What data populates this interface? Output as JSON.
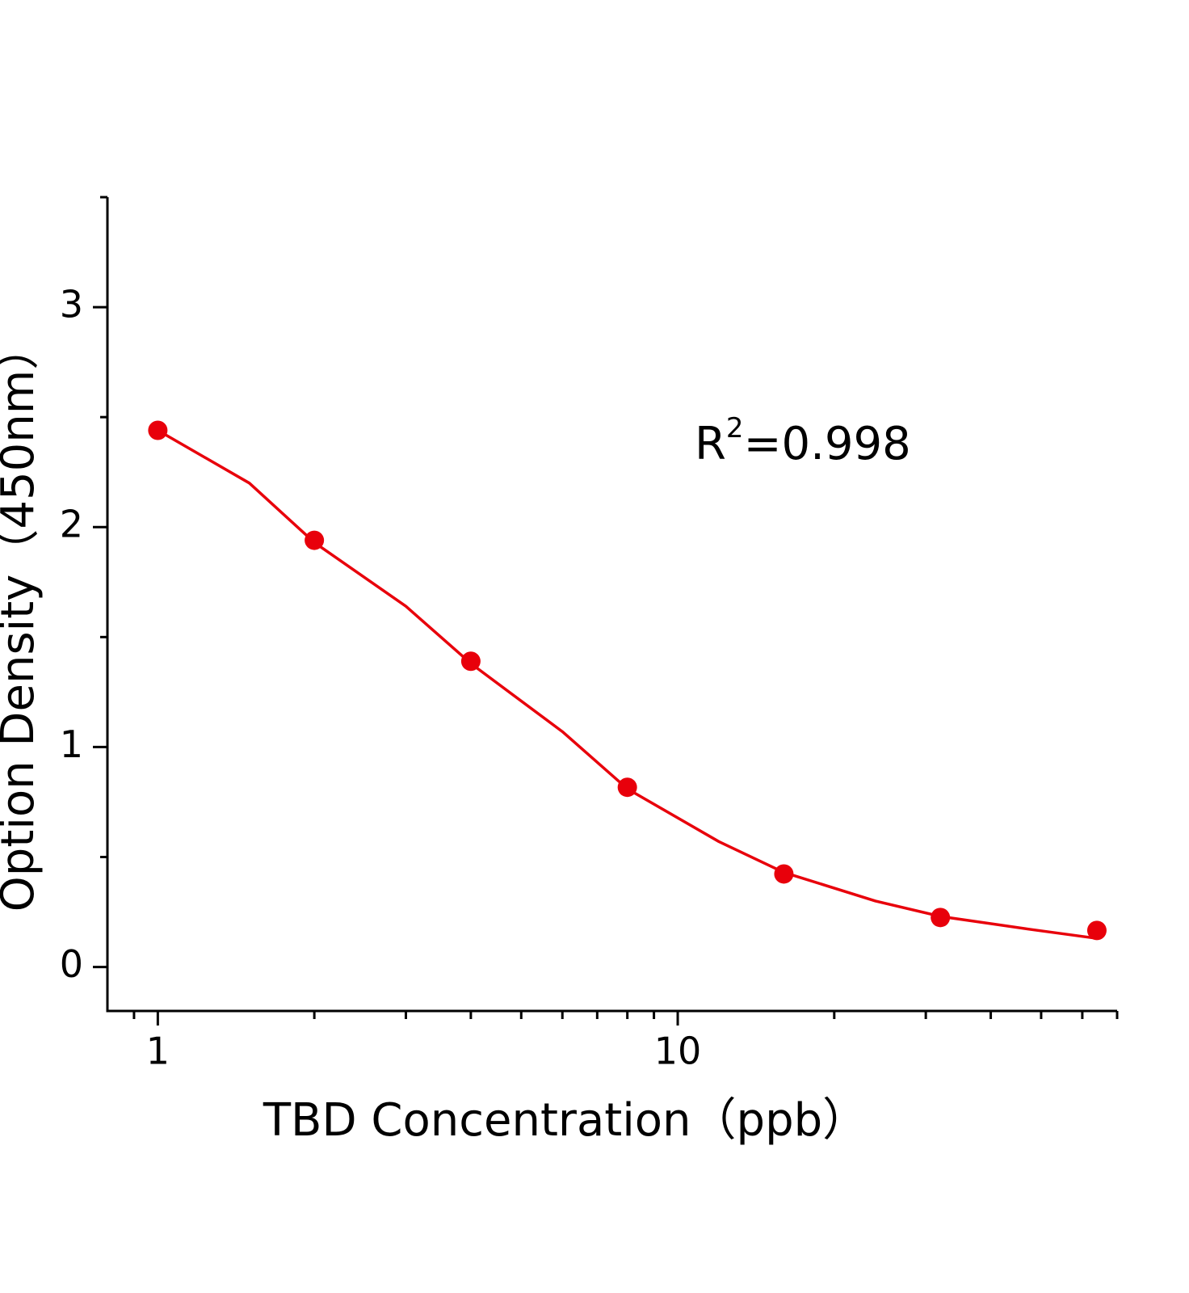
{
  "chart_data": {
    "type": "scatter",
    "xlabel": "TBD Concentration（ppb）",
    "ylabel": "Option Density（450nm）",
    "annotation": {
      "base": "R",
      "superscript": "2",
      "text": "=0.998"
    },
    "xscale": "log",
    "xlim": [
      0.8,
      70
    ],
    "ylim": [
      -0.2,
      3.5
    ],
    "xticks": [
      1,
      10
    ],
    "xminorticks": [
      0.9,
      2,
      3,
      4,
      5,
      6,
      7,
      8,
      9,
      20,
      30,
      40,
      50,
      60,
      70
    ],
    "yticks": [
      0,
      1,
      2,
      3
    ],
    "yminorticks": [
      0.5,
      1.5,
      2.5,
      3.5
    ],
    "series": [
      {
        "color": "#e8000b",
        "x": [
          1,
          2,
          4,
          8,
          16,
          32,
          64
        ],
        "values": [
          2.44,
          1.94,
          1.39,
          0.817,
          0.423,
          0.225,
          0.166
        ]
      }
    ],
    "curve": {
      "color": "#e8000b",
      "x": [
        1,
        1.5,
        2,
        3,
        4,
        6,
        8,
        12,
        16,
        24,
        32,
        48,
        64
      ],
      "values": [
        2.44,
        2.2,
        1.93,
        1.64,
        1.38,
        1.07,
        0.81,
        0.57,
        0.43,
        0.3,
        0.23,
        0.17,
        0.13
      ]
    }
  }
}
